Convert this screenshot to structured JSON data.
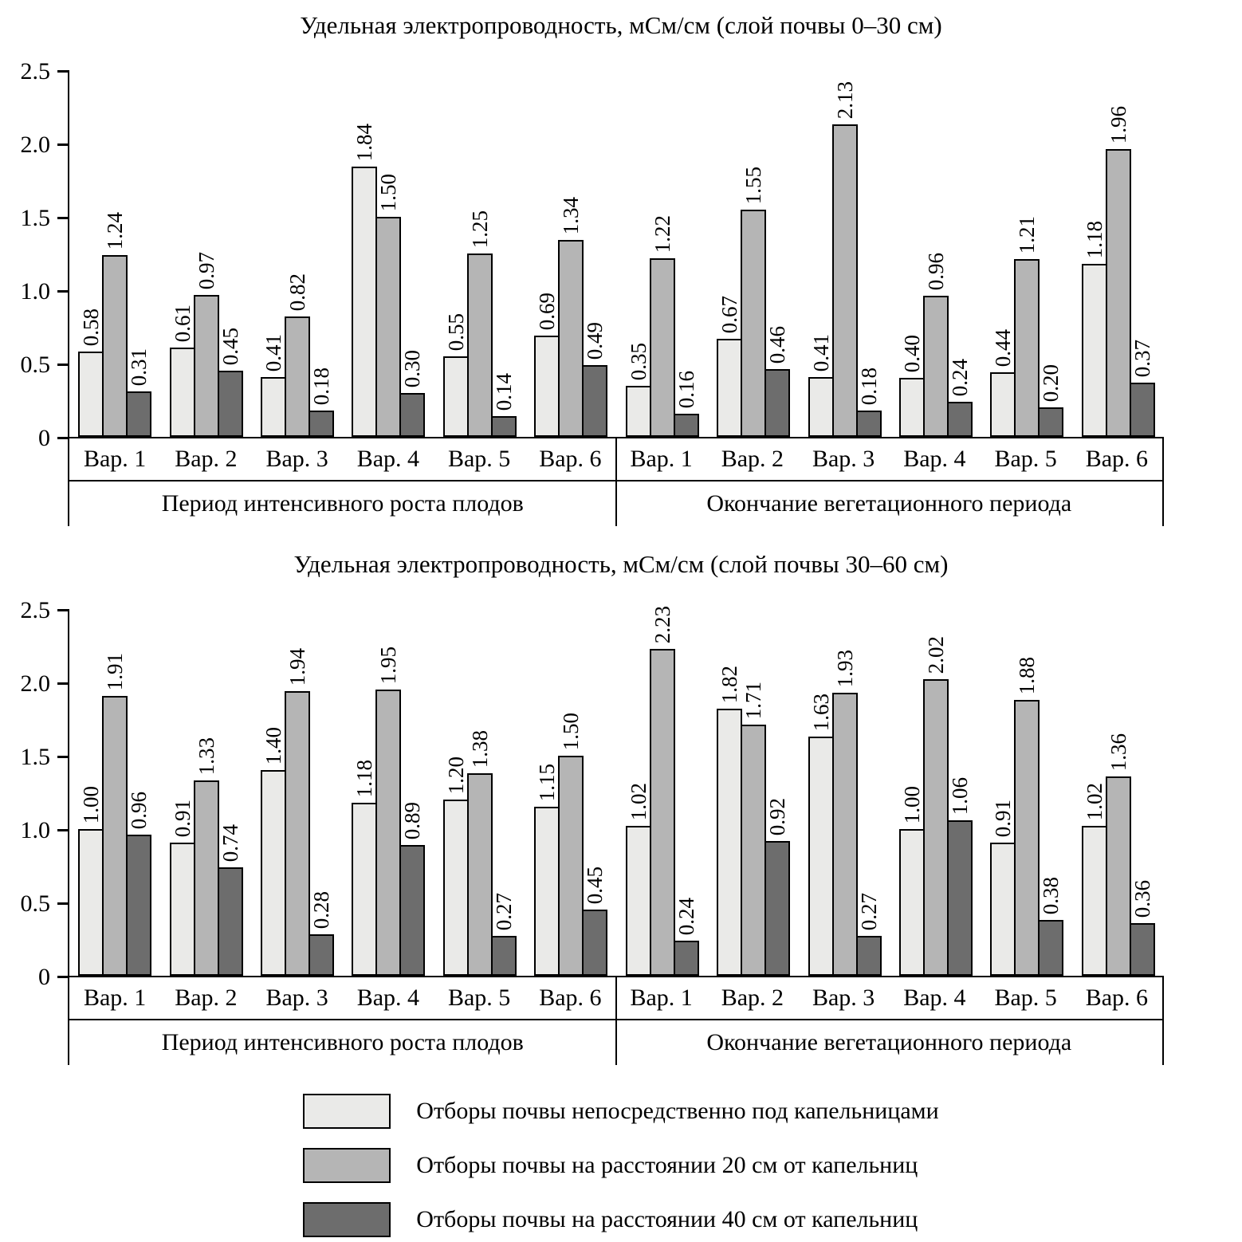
{
  "page": {
    "background": "#ffffff"
  },
  "chart_data": [
    {
      "type": "bar",
      "title": "Удельная электропроводность, мСм/см (слой почвы 0–30 см)",
      "ylim": [
        0,
        2.5
      ],
      "yticks": [
        "0",
        "0.5",
        "1.0",
        "1.5",
        "2.0",
        "2.5"
      ],
      "grid": false,
      "categories": [
        "Вар. 1",
        "Вар. 2",
        "Вар. 3",
        "Вар. 4",
        "Вар. 5",
        "Вар. 6"
      ],
      "series_names": [
        "Отборы почвы непосредственно под капельницами",
        "Отборы почвы на расстоянии 20 см от капельниц",
        "Отборы почвы на расстоянии 40 см от капельниц"
      ],
      "sections": [
        {
          "label": "Период интенсивного роста плодов",
          "values": [
            [
              0.58,
              0.61,
              0.41,
              1.84,
              0.55,
              0.69
            ],
            [
              1.24,
              0.97,
              0.82,
              1.5,
              1.25,
              1.34
            ],
            [
              0.31,
              0.45,
              0.18,
              0.3,
              0.14,
              0.49
            ]
          ]
        },
        {
          "label": "Окончание вегетационного периода",
          "values": [
            [
              0.35,
              0.67,
              0.41,
              0.4,
              0.44,
              1.18
            ],
            [
              1.22,
              1.55,
              2.13,
              0.96,
              1.21,
              1.96
            ],
            [
              0.16,
              0.46,
              0.18,
              0.24,
              0.2,
              0.37
            ]
          ]
        }
      ]
    },
    {
      "type": "bar",
      "title": "Удельная электропроводность, мСм/см (слой почвы 30–60 см)",
      "ylim": [
        0,
        2.5
      ],
      "yticks": [
        "0",
        "0.5",
        "1.0",
        "1.5",
        "2.0",
        "2.5"
      ],
      "grid": false,
      "categories": [
        "Вар. 1",
        "Вар. 2",
        "Вар. 3",
        "Вар. 4",
        "Вар. 5",
        "Вар. 6"
      ],
      "series_names": [
        "Отборы почвы непосредственно под капельницами",
        "Отборы почвы на расстоянии 20 см от капельниц",
        "Отборы почвы на расстоянии 40 см от капельниц"
      ],
      "sections": [
        {
          "label": "Период интенсивного роста плодов",
          "values": [
            [
              1.0,
              0.91,
              1.4,
              1.18,
              1.2,
              1.15
            ],
            [
              1.91,
              1.33,
              1.94,
              1.95,
              1.38,
              1.5
            ],
            [
              0.96,
              0.74,
              0.28,
              0.89,
              0.27,
              0.45
            ]
          ]
        },
        {
          "label": "Окончание вегетационного периода",
          "values": [
            [
              1.02,
              1.82,
              1.63,
              1.0,
              0.91,
              1.02
            ],
            [
              2.23,
              1.71,
              1.93,
              2.02,
              1.88,
              1.36
            ],
            [
              0.24,
              0.92,
              0.27,
              1.06,
              0.38,
              0.36
            ]
          ]
        }
      ]
    }
  ],
  "legend": {
    "items": [
      {
        "label": "Отборы почвы непосредственно под капельницами",
        "color": "#eaeae8"
      },
      {
        "label": "Отборы почвы на расстоянии 20 см от капельниц",
        "color": "#b5b5b5"
      },
      {
        "label": "Отборы почвы на расстоянии 40 см от капельниц",
        "color": "#6d6d6d"
      }
    ]
  }
}
